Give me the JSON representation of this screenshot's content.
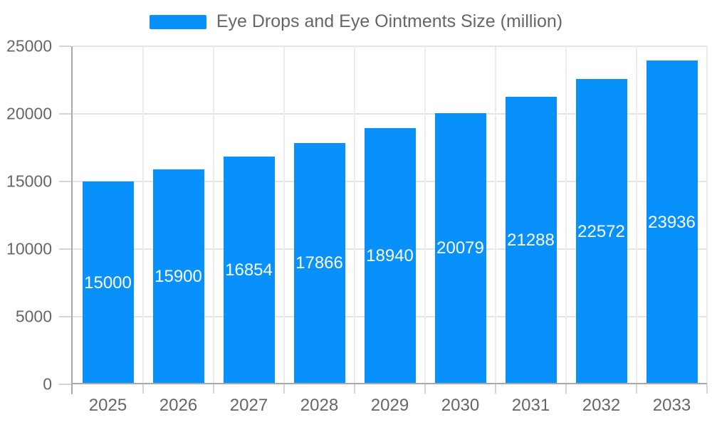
{
  "chart_data": {
    "type": "bar",
    "title": "Eye Drops and Eye Ointments Size (million)",
    "categories": [
      "2025",
      "2026",
      "2027",
      "2028",
      "2029",
      "2030",
      "2031",
      "2032",
      "2033"
    ],
    "series": [
      {
        "name": "Eye Drops and Eye Ointments Size (million)",
        "values": [
          15000,
          15900,
          16854,
          17866,
          18940,
          20079,
          21288,
          22572,
          23936
        ]
      }
    ],
    "data_labels": [
      "15000",
      "15900",
      "16854",
      "17866",
      "18940",
      "20079",
      "21288",
      "22572",
      "23936"
    ],
    "xlabel": "",
    "ylabel": "",
    "ylim": [
      0,
      25000
    ],
    "yticks": [
      0,
      5000,
      10000,
      15000,
      20000,
      25000
    ],
    "ytick_labels": [
      "0",
      "5000",
      "10000",
      "15000",
      "20000",
      "25000"
    ],
    "grid": "both",
    "legend_position": "top",
    "colors": {
      "bar": "#0890FB",
      "data_label": "#FFFFFF",
      "axis_label": "#666666",
      "grid_h": "#E4E4E4",
      "grid_v": "#ECECEC",
      "axis_line": "#A8A8A8",
      "tick": "#D4D4D4",
      "background": "#FFFFFF"
    }
  }
}
